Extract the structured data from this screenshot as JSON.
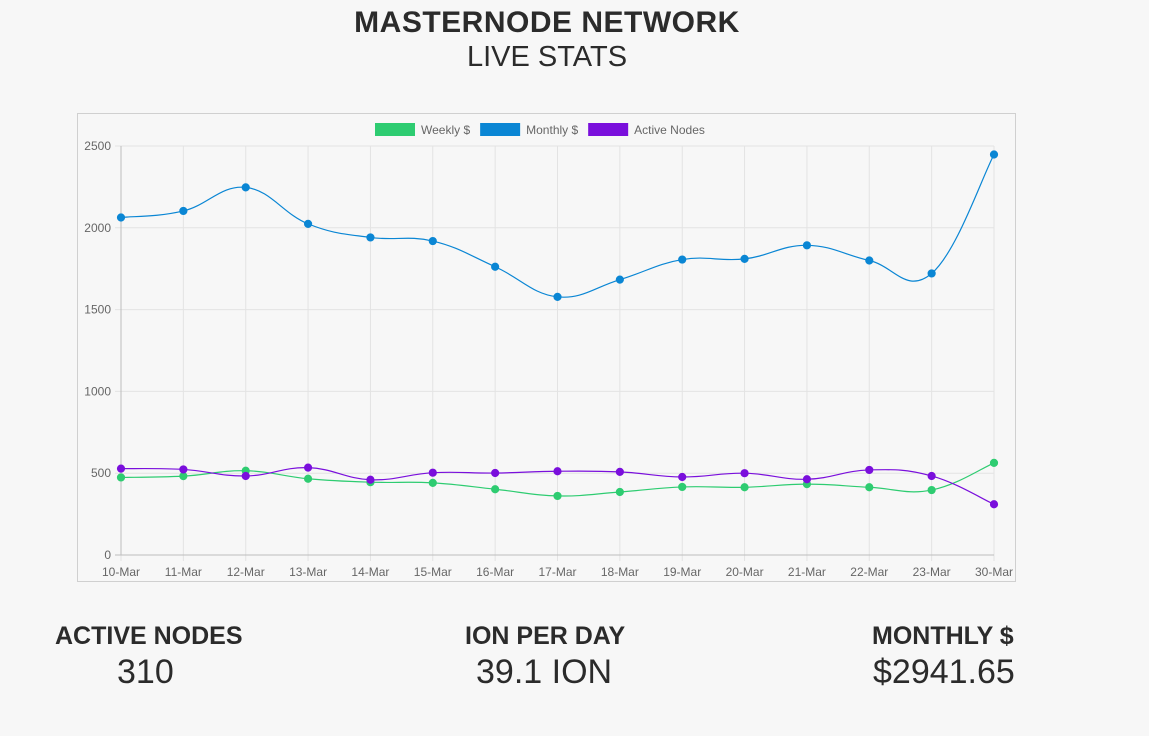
{
  "header": {
    "title": "MASTERNODE NETWORK",
    "subtitle": "LIVE STATS"
  },
  "stats": [
    {
      "label": "ACTIVE NODES",
      "value": "310"
    },
    {
      "label": "ION PER DAY",
      "value": "39.1 ION"
    },
    {
      "label": "MONTHLY $",
      "value": "$2941.65"
    }
  ],
  "chart_data": {
    "type": "line",
    "categories": [
      "10-Mar",
      "11-Mar",
      "12-Mar",
      "13-Mar",
      "14-Mar",
      "15-Mar",
      "16-Mar",
      "17-Mar",
      "18-Mar",
      "19-Mar",
      "20-Mar",
      "21-Mar",
      "22-Mar",
      "23-Mar",
      "30-Mar"
    ],
    "ylim": [
      0,
      2500
    ],
    "yticks": [
      0,
      500,
      1000,
      1500,
      2000,
      2500
    ],
    "grid": true,
    "legend_position": "top",
    "series": [
      {
        "name": "Weekly $",
        "color": "#2ecc71",
        "values": [
          474,
          482,
          515,
          466,
          445,
          441,
          402,
          361,
          385,
          416,
          414,
          433,
          414,
          397,
          563
        ]
      },
      {
        "name": "Monthly $",
        "color": "#0a86d4",
        "values": [
          2063,
          2103,
          2247,
          2024,
          1941,
          1919,
          1762,
          1578,
          1683,
          1806,
          1810,
          1893,
          1800,
          1721,
          2448
        ]
      },
      {
        "name": "Active Nodes",
        "color": "#7a0fdc",
        "values": [
          528,
          523,
          483,
          534,
          460,
          503,
          501,
          512,
          508,
          477,
          500,
          463,
          520,
          483,
          310
        ]
      }
    ]
  }
}
